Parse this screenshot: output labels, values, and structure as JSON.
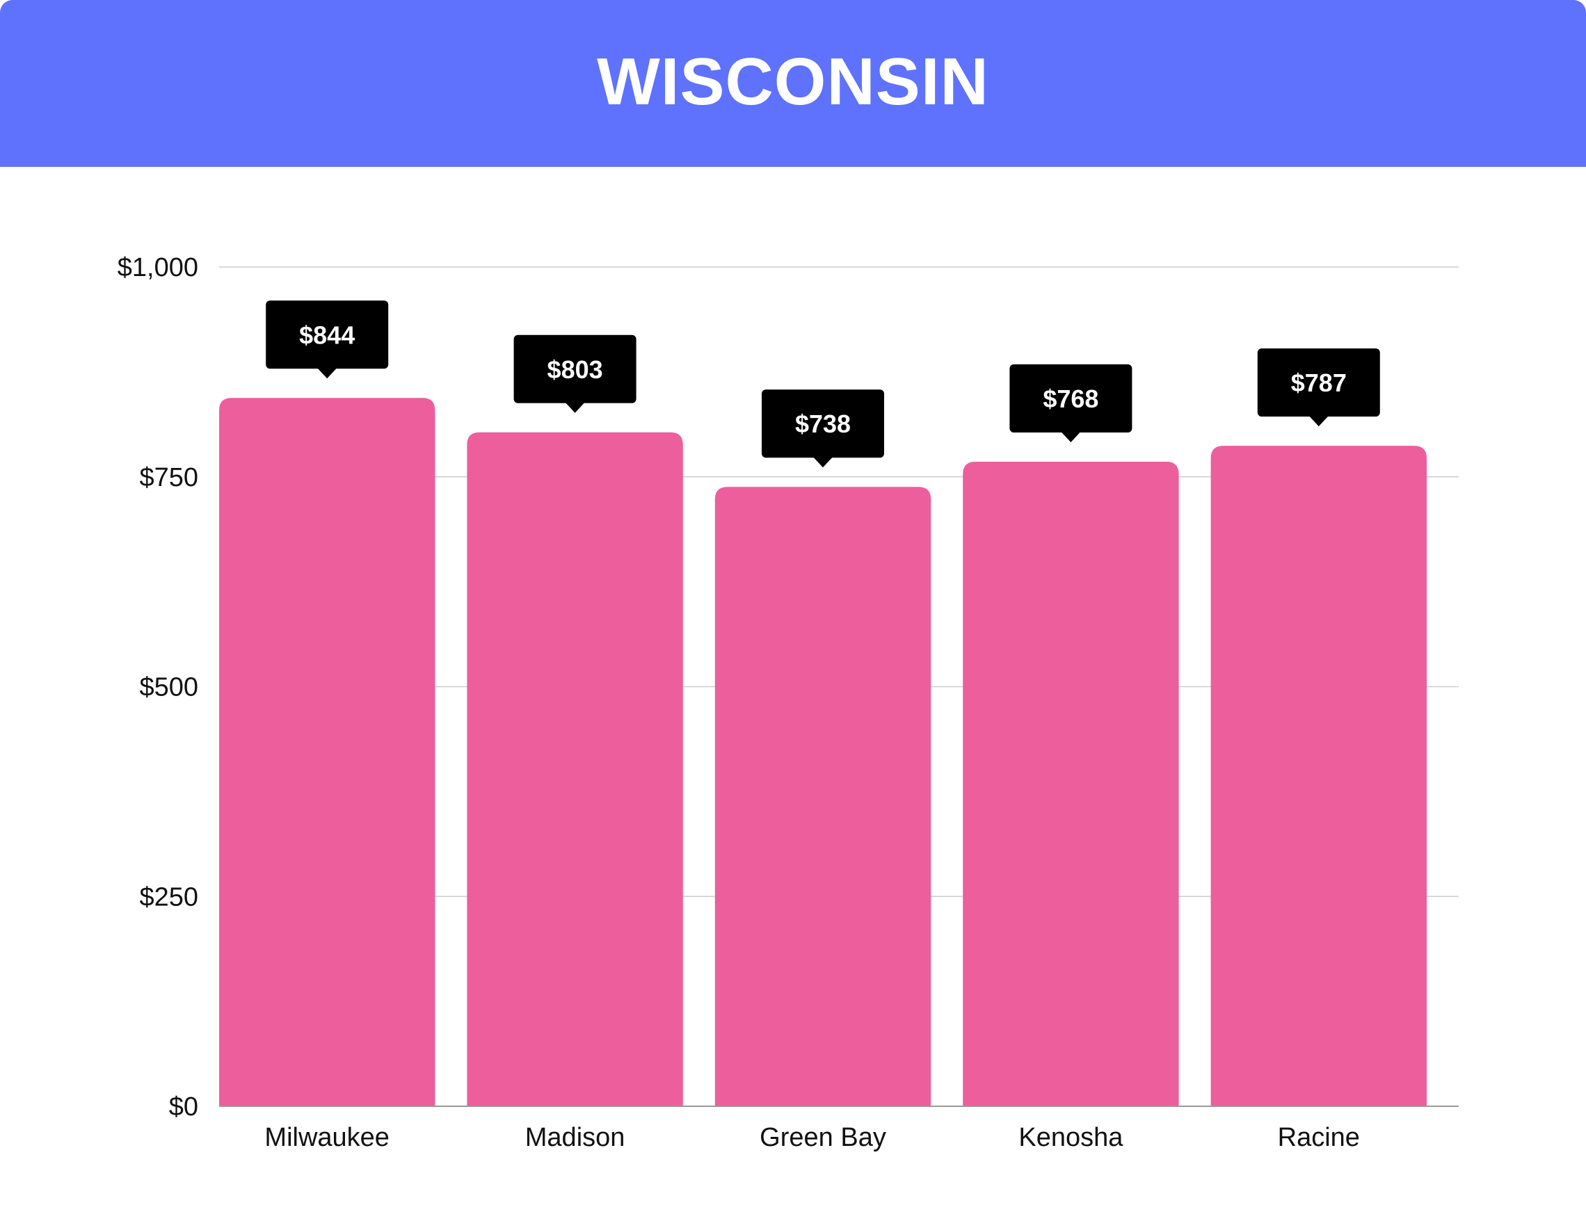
{
  "header": {
    "title": "WISCONSIN"
  },
  "colors": {
    "header_bg": "#5f72fe",
    "bar": "#ec5f9c",
    "label_bg": "#000000",
    "grid": "#cccccc",
    "axis": "#999999"
  },
  "chart_data": {
    "type": "bar",
    "title": "WISCONSIN",
    "xlabel": "",
    "ylabel": "",
    "categories": [
      "Milwaukee",
      "Madison",
      "Green Bay",
      "Kenosha",
      "Racine"
    ],
    "values": [
      844,
      803,
      738,
      768,
      787
    ],
    "value_labels": [
      "$844",
      "$803",
      "$738",
      "$768",
      "$787"
    ],
    "ylim": [
      0,
      1000
    ],
    "yticks": [
      0,
      250,
      500,
      750,
      1000
    ],
    "ytick_labels": [
      "$0",
      "$250",
      "$500",
      "$750",
      "$1,000"
    ],
    "grid": true
  }
}
